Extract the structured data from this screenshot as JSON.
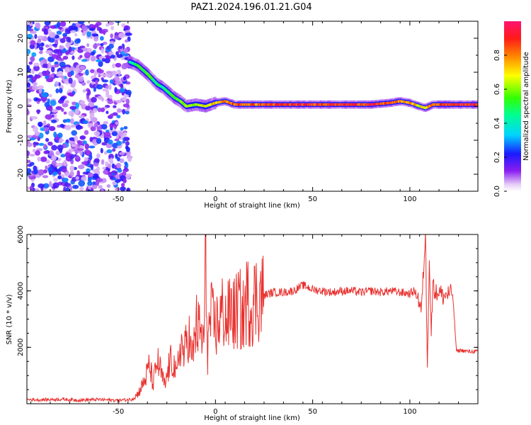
{
  "figure": {
    "title": "PAZ1.2024.196.01.21.G04"
  },
  "chart_data": [
    {
      "type": "heatmap",
      "title": "PAZ1.2024.196.01.21.G04",
      "xlabel": "Height of straight line (km)",
      "ylabel": "Frequency (Hz)",
      "xlim": [
        -97,
        135
      ],
      "ylim": [
        -25,
        25
      ],
      "x_ticks": [
        -50,
        0,
        50,
        100
      ],
      "x_tick_labels": [
        "-50",
        "0",
        "50",
        "100"
      ],
      "y_ticks": [
        -20,
        -10,
        0,
        10,
        20
      ],
      "y_tick_labels": [
        "-20",
        "-10",
        "0",
        "10",
        "20"
      ],
      "colormap": "gist_rainbow_r",
      "colorbar": {
        "label": "Normalized spectral amplitude",
        "range": [
          0,
          1
        ],
        "ticks": [
          0.0,
          0.2,
          0.4,
          0.6,
          0.8
        ],
        "tick_labels": [
          "0.0",
          "0.2",
          "0.4",
          "0.6",
          "0.8"
        ]
      },
      "noise_region": {
        "x_range": [
          -97,
          -44
        ],
        "f_range": [
          -25,
          25
        ],
        "amplitude_range": [
          0.05,
          0.3
        ]
      },
      "ridge": {
        "x": [
          -44,
          -40,
          -35,
          -30,
          -27,
          -24,
          -21,
          -18,
          -15,
          -10,
          -5,
          0,
          5,
          10,
          20,
          40,
          60,
          80,
          90,
          95,
          100,
          105,
          108,
          112,
          120,
          135
        ],
        "f": [
          13,
          12,
          9.5,
          6.5,
          5.5,
          4,
          2.5,
          1.5,
          0,
          0.5,
          0,
          1,
          1.5,
          0.5,
          0.5,
          0.5,
          0.5,
          0.5,
          1,
          1.5,
          1,
          0,
          -0.5,
          0.5,
          0.5,
          0.5
        ],
        "amplitude": [
          0.45,
          0.5,
          0.55,
          0.5,
          0.45,
          0.5,
          0.55,
          0.55,
          0.6,
          0.65,
          0.7,
          0.75,
          0.8,
          0.85,
          0.85,
          0.9,
          0.92,
          0.92,
          0.85,
          0.8,
          0.8,
          0.7,
          0.7,
          0.85,
          0.9,
          0.95
        ]
      }
    },
    {
      "type": "line",
      "xlabel": "Height of straight line (km)",
      "ylabel": "SNR (10 * v/v)",
      "xlim": [
        -97,
        135
      ],
      "ylim": [
        0,
        6000
      ],
      "x_ticks": [
        -50,
        0,
        50,
        100
      ],
      "x_tick_labels": [
        "-50",
        "0",
        "50",
        "100"
      ],
      "y_ticks": [
        2000,
        4000,
        6000
      ],
      "y_tick_labels": [
        "2000",
        "4000",
        "6000"
      ],
      "color": "#e8322f",
      "series": [
        {
          "x": [
            -97,
            -90,
            -80,
            -70,
            -60,
            -50,
            -44,
            -42,
            -40,
            -38,
            -36,
            -34,
            -32,
            -30,
            -28,
            -26,
            -24,
            -22,
            -20,
            -18,
            -16,
            -14,
            -12,
            -10,
            -8,
            -6,
            -5,
            -4,
            -3,
            -2,
            0,
            2,
            4,
            6,
            8,
            10,
            12,
            14,
            16,
            18,
            20,
            22,
            25,
            30,
            35,
            40,
            45,
            47,
            50,
            55,
            60,
            65,
            70,
            75,
            80,
            85,
            90,
            95,
            100,
            102,
            104,
            106,
            107,
            108,
            109,
            110,
            111,
            112,
            113,
            115,
            117,
            120,
            122,
            124,
            126,
            130,
            135
          ],
          "y": [
            150,
            140,
            160,
            130,
            150,
            120,
            150,
            220,
            350,
            600,
            900,
            1350,
            700,
            1500,
            1100,
            600,
            1300,
            1600,
            900,
            2200,
            1700,
            2600,
            1500,
            2800,
            2500,
            2200,
            5050,
            1800,
            2900,
            3000,
            2700,
            3000,
            3300,
            2900,
            3400,
            3100,
            3500,
            3000,
            3700,
            3500,
            3700,
            3800,
            3850,
            3950,
            3950,
            4000,
            4200,
            4150,
            4050,
            4000,
            3950,
            4000,
            4000,
            3950,
            4000,
            3950,
            4000,
            3950,
            3900,
            4000,
            3800,
            3300,
            4700,
            6000,
            1500,
            5200,
            2500,
            4500,
            3900,
            4000,
            3800,
            3900,
            3900,
            1850,
            1900,
            1850,
            1850
          ]
        }
      ]
    }
  ]
}
